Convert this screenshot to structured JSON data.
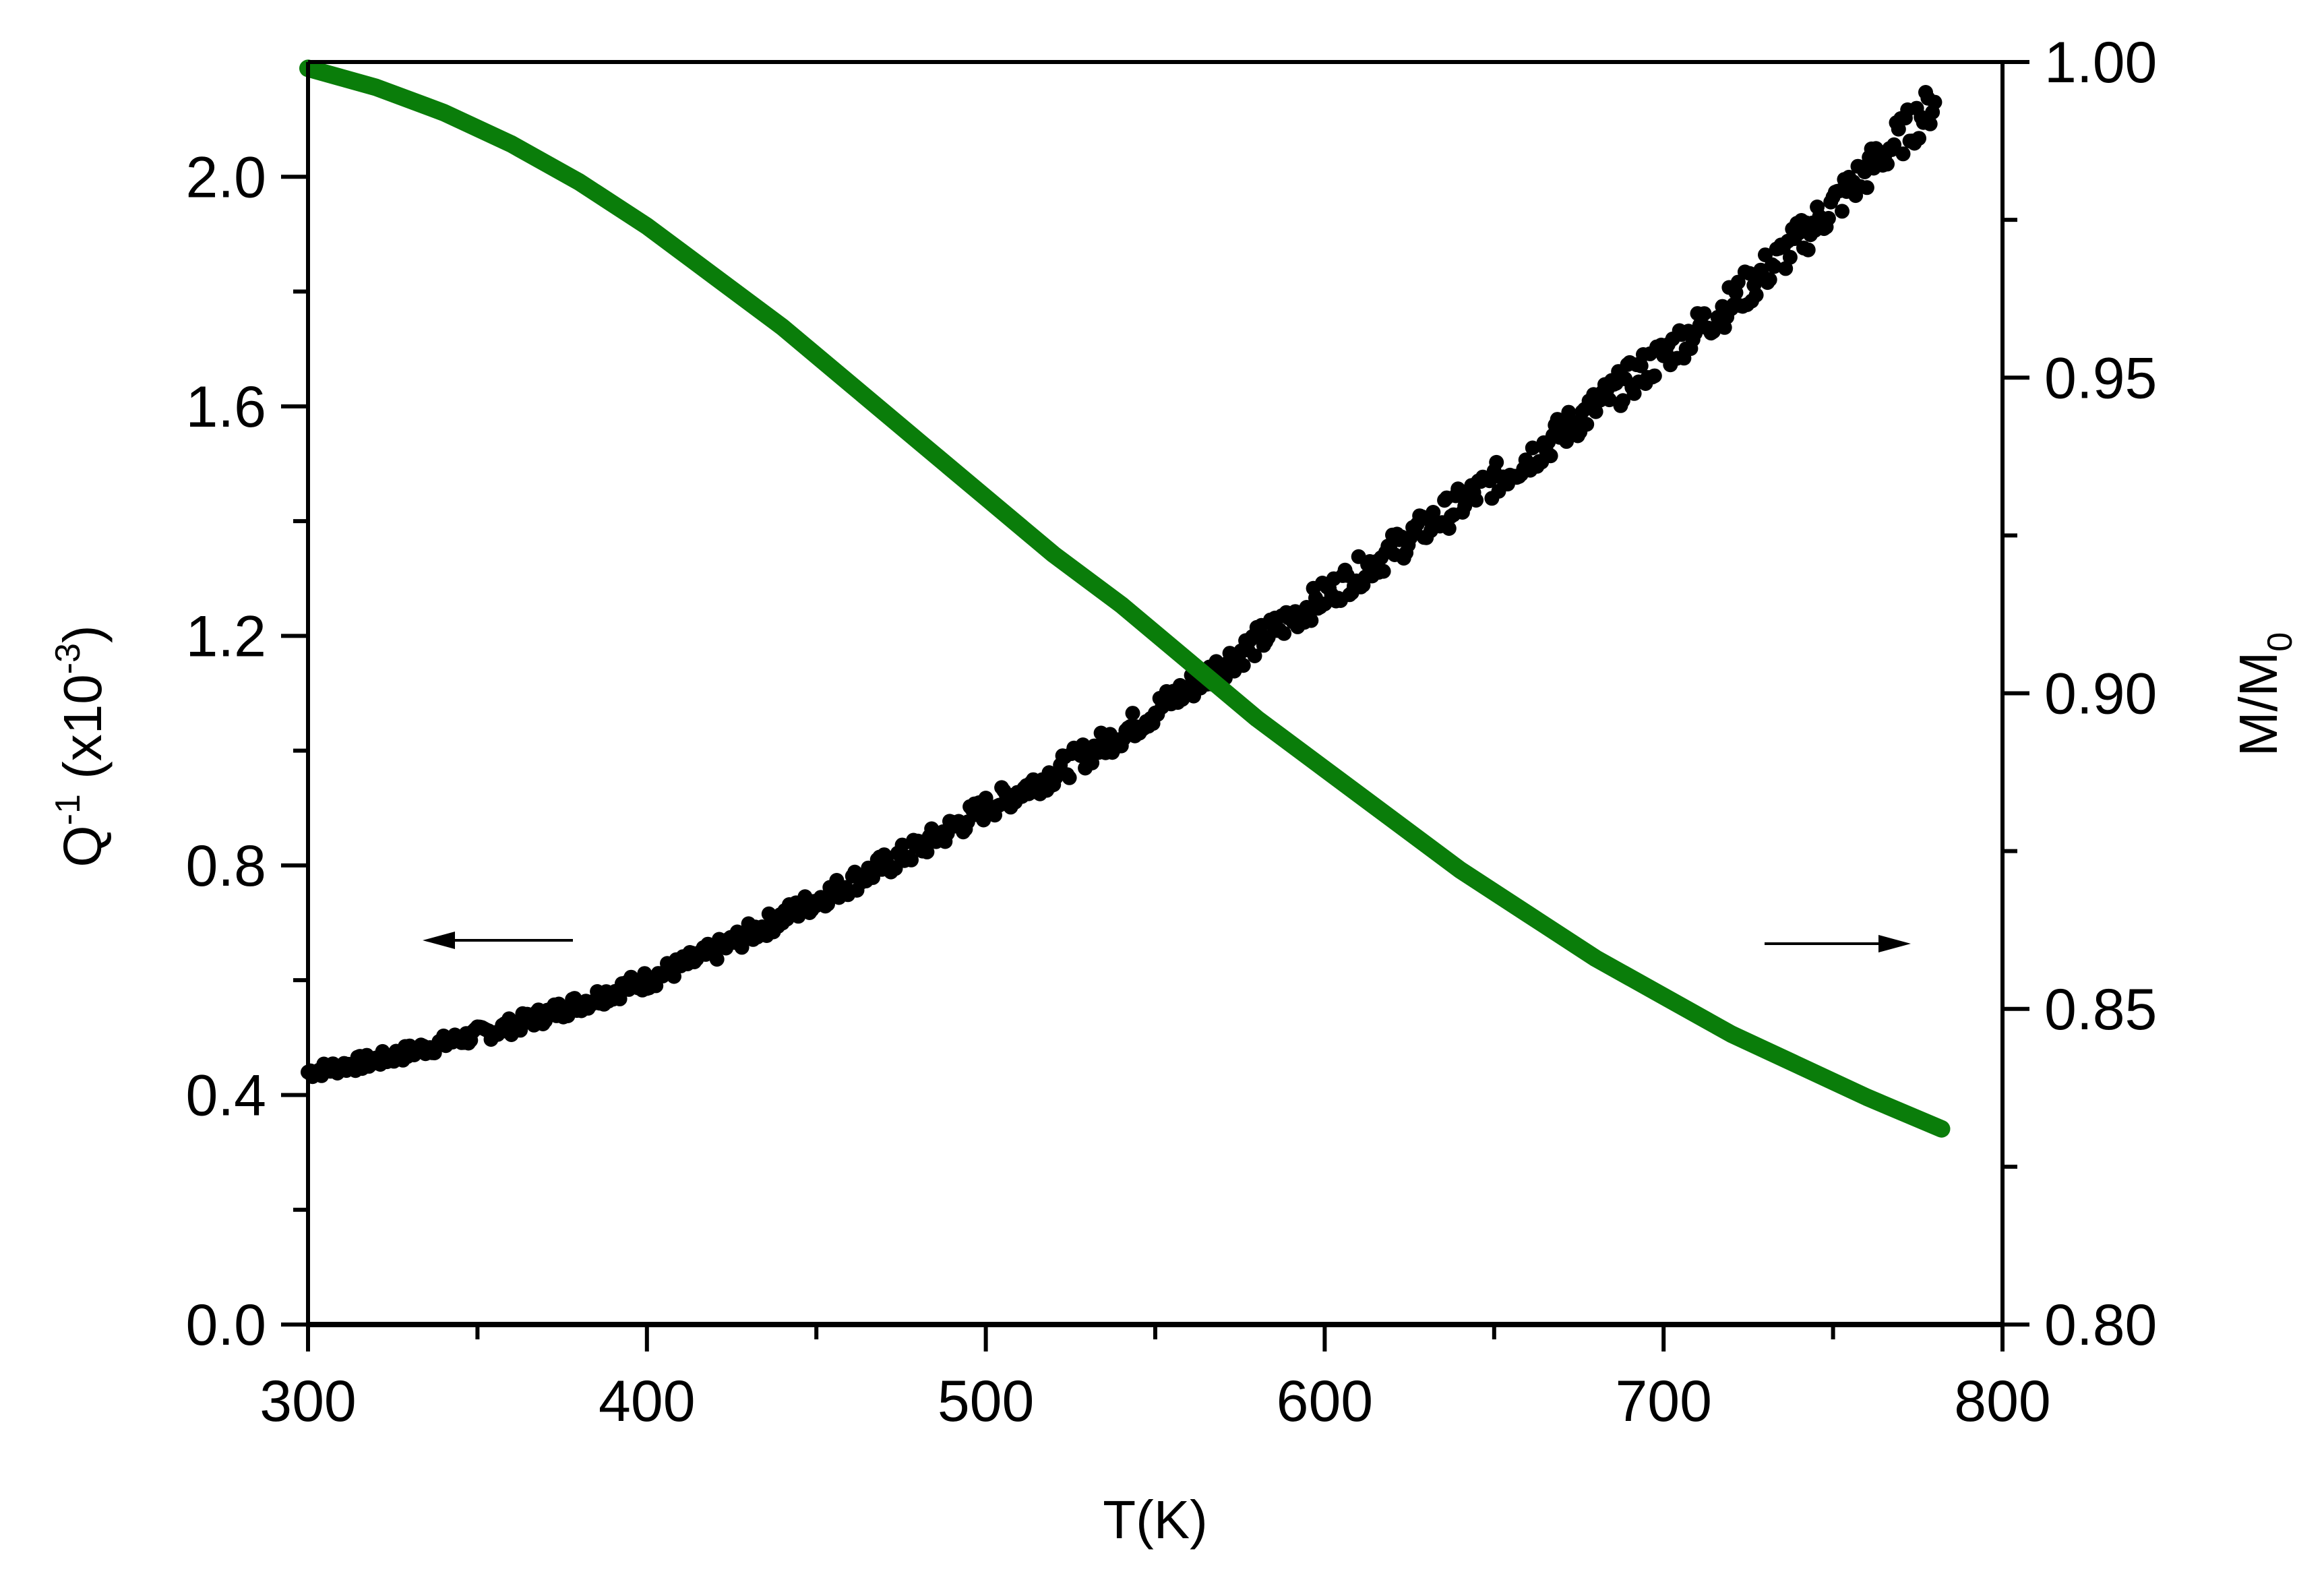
{
  "chart_data": {
    "type": "scatter",
    "title": "",
    "xlabel": "T(K)",
    "ylabel": "Q^-1 (x10^-3)",
    "ylabel_right": "M/M0",
    "xlim": [
      300,
      800
    ],
    "ylim": [
      0.0,
      2.2
    ],
    "ylim_right": [
      0.8,
      1.0
    ],
    "x_ticks": [
      300,
      400,
      500,
      600,
      700,
      800
    ],
    "x_tick_labels": [
      "300",
      "400",
      "500",
      "600",
      "700",
      "800"
    ],
    "y_ticks": [
      0.0,
      0.4,
      0.8,
      1.2,
      1.6,
      2.0
    ],
    "y_tick_labels": [
      "0.0",
      "0.4",
      "0.8",
      "1.2",
      "1.6",
      "2.0"
    ],
    "y_right_ticks": [
      0.8,
      0.85,
      0.9,
      0.95,
      1.0
    ],
    "y_right_tick_labels": [
      "0.80",
      "0.85",
      "0.90",
      "0.95",
      "1.00"
    ],
    "grid": false,
    "legend": null,
    "annotations": [
      {
        "type": "arrow",
        "direction": "left",
        "meaning": "points to left axis (Q^-1)",
        "x_range": [
          334,
          378
        ],
        "y": 0.67
      },
      {
        "type": "arrow",
        "direction": "right",
        "meaning": "points to right axis (M/M0)",
        "x_range": [
          730,
          773
        ],
        "y": 0.665
      }
    ],
    "series": [
      {
        "name": "Q^-1",
        "axis": "left",
        "style": "scatter",
        "color": "#000000",
        "x": [
          300,
          320,
          340,
          360,
          380,
          400,
          420,
          440,
          460,
          480,
          500,
          520,
          540,
          560,
          580,
          600,
          620,
          640,
          660,
          680,
          700,
          720,
          740,
          760,
          780
        ],
        "y": [
          0.44,
          0.46,
          0.49,
          0.52,
          0.56,
          0.6,
          0.65,
          0.71,
          0.77,
          0.83,
          0.9,
          0.96,
          1.03,
          1.11,
          1.19,
          1.27,
          1.35,
          1.43,
          1.51,
          1.6,
          1.69,
          1.78,
          1.89,
          2.01,
          2.13
        ]
      },
      {
        "name": "M/M0",
        "axis": "right",
        "style": "line",
        "color": "#0a7d0a",
        "x": [
          300,
          320,
          340,
          360,
          380,
          400,
          420,
          440,
          460,
          480,
          500,
          520,
          540,
          560,
          580,
          600,
          620,
          640,
          660,
          680,
          700,
          720,
          740,
          760,
          782
        ],
        "y": [
          0.999,
          0.996,
          0.992,
          0.987,
          0.981,
          0.974,
          0.966,
          0.958,
          0.949,
          0.94,
          0.931,
          0.922,
          0.914,
          0.905,
          0.896,
          0.888,
          0.88,
          0.872,
          0.865,
          0.858,
          0.852,
          0.846,
          0.841,
          0.836,
          0.831
        ]
      }
    ]
  },
  "colors": {
    "axis": "#000000",
    "scatter": "#000000",
    "line": "#0a7d0a"
  }
}
